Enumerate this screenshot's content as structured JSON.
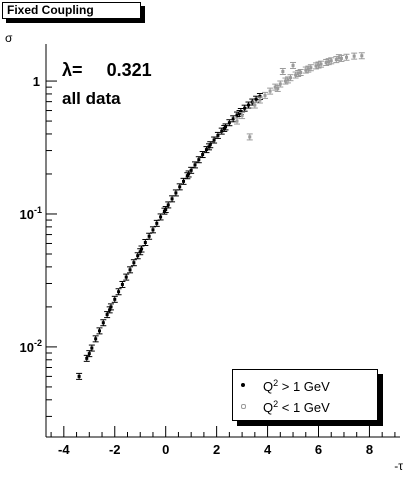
{
  "title_box": {
    "text": "Fixed Coupling"
  },
  "annotation": {
    "lambda_label": "λ=",
    "lambda_value": "0.321",
    "subset": "all data"
  },
  "legend": [
    {
      "sup": "2",
      "pre": "Q",
      "rest": " > 1 GeV",
      "color": "#000000"
    },
    {
      "sup": "2",
      "pre": "Q",
      "rest": " < 1 GeV",
      "color": "#9a9a9a"
    }
  ],
  "chart_data": {
    "type": "scatter",
    "xlabel": "-τ",
    "ylabel": "σ",
    "xlim": [
      -4.7,
      9.2
    ],
    "ylim": [
      0.0021,
      1.9
    ],
    "log_y": true,
    "x_ticks": [
      -4,
      -2,
      0,
      2,
      4,
      6,
      8
    ],
    "y_ticks": [
      {
        "value": 0.01,
        "label": "10",
        "exp": "-2"
      },
      {
        "value": 0.1,
        "label": "10",
        "exp": "-1"
      },
      {
        "value": 1,
        "label": "1",
        "exp": ""
      }
    ],
    "legend_placement": "bottom-right",
    "series": [
      {
        "name": "Q² > 1 GeV",
        "color": "#000000",
        "points": [
          [
            -3.4,
            0.006
          ],
          [
            -3.1,
            0.0082
          ],
          [
            -2.9,
            0.0098
          ],
          [
            -2.75,
            0.0115
          ],
          [
            -2.6,
            0.0132
          ],
          [
            -2.45,
            0.0152
          ],
          [
            -2.3,
            0.0175
          ],
          [
            -2.15,
            0.02
          ],
          [
            -2.0,
            0.0228
          ],
          [
            -1.85,
            0.026
          ],
          [
            -1.7,
            0.0295
          ],
          [
            -1.55,
            0.0335
          ],
          [
            -1.4,
            0.038
          ],
          [
            -1.25,
            0.043
          ],
          [
            -1.1,
            0.0485
          ],
          [
            -0.95,
            0.0545
          ],
          [
            -0.8,
            0.061
          ],
          [
            -0.65,
            0.068
          ],
          [
            -0.5,
            0.076
          ],
          [
            -0.35,
            0.085
          ],
          [
            -0.2,
            0.095
          ],
          [
            -0.05,
            0.105
          ],
          [
            0.1,
            0.117
          ],
          [
            0.25,
            0.13
          ],
          [
            0.4,
            0.144
          ],
          [
            0.55,
            0.16
          ],
          [
            0.7,
            0.176
          ],
          [
            0.85,
            0.194
          ],
          [
            1.0,
            0.213
          ],
          [
            1.15,
            0.234
          ],
          [
            1.3,
            0.256
          ],
          [
            1.45,
            0.28
          ],
          [
            1.6,
            0.305
          ],
          [
            1.75,
            0.332
          ],
          [
            1.9,
            0.36
          ],
          [
            2.05,
            0.39
          ],
          [
            2.2,
            0.42
          ],
          [
            2.35,
            0.452
          ],
          [
            2.5,
            0.486
          ],
          [
            2.65,
            0.52
          ],
          [
            2.8,
            0.555
          ],
          [
            2.95,
            0.59
          ],
          [
            3.1,
            0.625
          ],
          [
            3.25,
            0.66
          ],
          [
            3.4,
            0.695
          ],
          [
            3.55,
            0.73
          ],
          [
            3.7,
            0.765
          ],
          [
            -3.0,
            0.0089
          ],
          [
            -2.2,
            0.019
          ],
          [
            -1.0,
            0.052
          ],
          [
            0.0,
            0.108
          ],
          [
            0.9,
            0.2
          ],
          [
            1.7,
            0.32
          ],
          [
            2.3,
            0.44
          ],
          [
            2.9,
            0.57
          ]
        ]
      },
      {
        "name": "Q² < 1 GeV",
        "color": "#9a9a9a",
        "points": [
          [
            2.8,
            0.5
          ],
          [
            3.0,
            0.55
          ],
          [
            3.3,
            0.38
          ],
          [
            3.5,
            0.66
          ],
          [
            3.7,
            0.72
          ],
          [
            3.9,
            0.78
          ],
          [
            4.1,
            0.84
          ],
          [
            4.3,
            0.9
          ],
          [
            4.5,
            0.95
          ],
          [
            4.7,
            1.0
          ],
          [
            4.9,
            1.06
          ],
          [
            5.1,
            1.11
          ],
          [
            5.3,
            1.16
          ],
          [
            5.5,
            1.21
          ],
          [
            5.7,
            1.26
          ],
          [
            5.9,
            1.3
          ],
          [
            6.1,
            1.34
          ],
          [
            6.3,
            1.38
          ],
          [
            6.5,
            1.42
          ],
          [
            6.7,
            1.45
          ],
          [
            6.9,
            1.48
          ],
          [
            7.1,
            1.51
          ],
          [
            7.4,
            1.54
          ],
          [
            7.7,
            1.55
          ],
          [
            4.4,
            0.88
          ],
          [
            4.8,
            1.02
          ],
          [
            5.2,
            1.14
          ],
          [
            5.6,
            1.23
          ],
          [
            6.0,
            1.32
          ],
          [
            6.4,
            1.4
          ],
          [
            5.0,
            1.31
          ],
          [
            4.6,
            1.18
          ],
          [
            6.8,
            1.5
          ]
        ]
      }
    ]
  }
}
